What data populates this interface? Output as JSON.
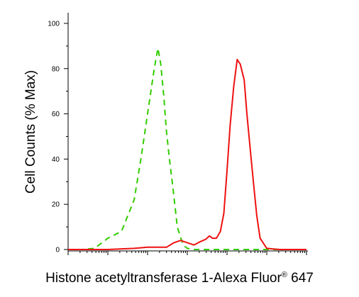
{
  "chart_data": {
    "type": "line",
    "title": "",
    "xlabel_parts": [
      "Histone acetyltransferase 1-Alexa Fluor",
      "®",
      " 647"
    ],
    "ylabel": "Cell Counts (% Max)",
    "x_scale": "log",
    "xlim": [
      1,
      1000000
    ],
    "ylim": [
      0,
      100
    ],
    "yticks": [
      0,
      20,
      40,
      60,
      80,
      100
    ],
    "ytick_labels": [
      "0",
      "20",
      "40",
      "60",
      "80",
      "100"
    ],
    "grid": false,
    "series": [
      {
        "color": "#33cc00",
        "dash": "dashed",
        "x": [
          1,
          2.2,
          4.6,
          10,
          22,
          46,
          68,
          100,
          147,
          182,
          215,
          255,
          300,
          355,
          430,
          560,
          780,
          1000,
          1470,
          2150,
          3160,
          10000,
          100000,
          1000000
        ],
        "y": [
          0,
          0,
          0.5,
          5,
          8,
          22,
          40,
          60,
          80,
          89,
          82,
          68,
          52,
          40,
          28,
          10,
          2,
          0.5,
          0,
          0,
          0,
          0,
          0,
          0
        ]
      },
      {
        "color": "#ee1111",
        "dash": "solid",
        "x": [
          1,
          10,
          46,
          100,
          215,
          300,
          460,
          680,
          1000,
          1470,
          2150,
          2900,
          3600,
          4300,
          5400,
          6800,
          8300,
          10000,
          12000,
          14700,
          18000,
          21500,
          27000,
          31600,
          38000,
          46000,
          56000,
          68000,
          100000,
          215000,
          1000000
        ],
        "y": [
          0,
          0,
          0.5,
          1,
          1,
          1,
          3,
          4,
          3,
          2,
          3.5,
          4.5,
          6,
          5,
          5,
          8,
          16,
          35,
          55,
          72,
          84,
          82,
          75,
          60,
          45,
          30,
          15,
          5,
          0.5,
          0,
          0
        ]
      }
    ]
  }
}
